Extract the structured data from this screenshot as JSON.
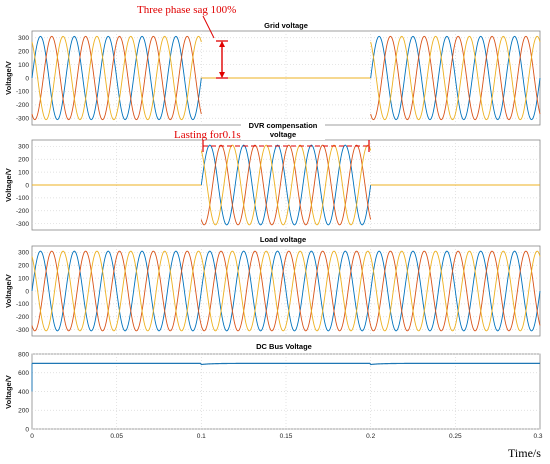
{
  "chart_data": {
    "type": "line",
    "x_axis": {
      "label": "Time/s",
      "range": [
        0,
        0.3
      ],
      "ticks": [
        "0",
        "0.05",
        "0.1",
        "0.15",
        "0.2",
        "0.25",
        "0.3"
      ]
    },
    "frequency_hz": 50,
    "phase_amplitude_v": 310,
    "phase_colors": [
      "#0072bd",
      "#d95319",
      "#edb120"
    ],
    "dc_color": "#1f77b4",
    "subplots": [
      {
        "title": "Grid voltage",
        "ylabel": "Voltage/V",
        "ylim": [
          -350,
          350
        ],
        "yticks": [
          "300",
          "200",
          "100",
          "0",
          "-100",
          "-200",
          "-300"
        ],
        "series": [
          {
            "amplitude": 310,
            "x_start": 0,
            "x_end": 0.1
          },
          {
            "amplitude": 0,
            "x_start": 0.1,
            "x_end": 0.2
          },
          {
            "amplitude": 310,
            "x_start": 0.2,
            "x_end": 0.3
          }
        ]
      },
      {
        "title_lines": [
          "DVR compensation",
          "voltage"
        ],
        "ylabel": "Voltage/V",
        "ylim": [
          -350,
          350
        ],
        "yticks": [
          "300",
          "200",
          "100",
          "0",
          "-100",
          "-200",
          "-300"
        ],
        "series": [
          {
            "amplitude": 0,
            "x_start": 0,
            "x_end": 0.1
          },
          {
            "amplitude": 310,
            "x_start": 0.1,
            "x_end": 0.2
          },
          {
            "amplitude": 0,
            "x_start": 0.2,
            "x_end": 0.3
          }
        ]
      },
      {
        "title": "Load voltage",
        "ylabel": "Voltage/V",
        "ylim": [
          -350,
          350
        ],
        "yticks": [
          "300",
          "200",
          "100",
          "0",
          "-100",
          "-200",
          "-300"
        ],
        "series": [
          {
            "amplitude": 310,
            "x_start": 0,
            "x_end": 0.3
          }
        ]
      },
      {
        "title": "DC Bus Voltage",
        "ylabel": "Voltage/V",
        "ylim": [
          0,
          800
        ],
        "yticks": [
          "800",
          "600",
          "400",
          "200",
          "0"
        ],
        "dc_bus_v": 700,
        "dip_times_s": [
          0.1,
          0.2
        ]
      }
    ],
    "annotations": [
      {
        "text": "Three phase sag  100%",
        "subplot": 0
      },
      {
        "text": "Lasting for0.1s",
        "subplot": 1,
        "from_s": 0.1,
        "to_s": 0.2
      }
    ]
  }
}
